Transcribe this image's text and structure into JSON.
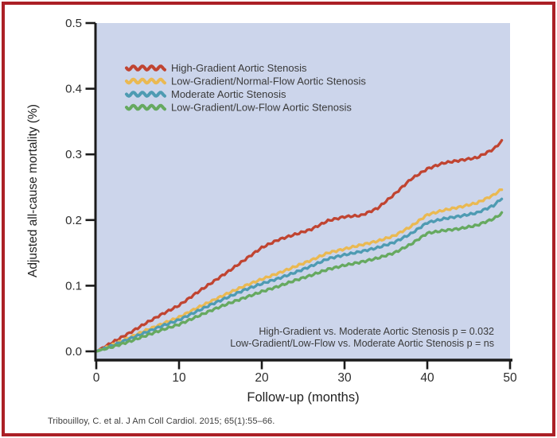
{
  "figure": {
    "citation": "Tribouilloy, C. et al. J Am Coll Cardiol. 2015; 65(1):55–66.",
    "border_color": "#ab2026",
    "background_color": "#ffffff"
  },
  "chart_data": {
    "type": "line",
    "title": "",
    "xlabel": "Follow-up (months)",
    "ylabel": "Adjusted all-cause mortality (%)",
    "xlim": [
      0,
      50
    ],
    "ylim": [
      0.0,
      0.5
    ],
    "x_ticks": [
      "0",
      "10",
      "20",
      "30",
      "40",
      "50"
    ],
    "x_tick_values": [
      0,
      10,
      20,
      30,
      40,
      50
    ],
    "y_ticks": [
      "0.0",
      "0.1",
      "0.2",
      "0.3",
      "0.4",
      "0.5"
    ],
    "y_tick_values": [
      0.0,
      0.1,
      0.2,
      0.3,
      0.4,
      0.5
    ],
    "grid": false,
    "plot_background": "#ccd5eb",
    "axis_color": "#1b1b1b",
    "legend_position": "upper-left-inside",
    "line_style": "wavy",
    "x": [
      0,
      2,
      4,
      6,
      8,
      10,
      12,
      14,
      16,
      18,
      20,
      22,
      24,
      26,
      28,
      30,
      32,
      34,
      36,
      38,
      40,
      42,
      44,
      46,
      48,
      49
    ],
    "series": [
      {
        "name": "High-Gradient Aortic Stenosis",
        "color": "#c04431",
        "values": [
          0.0,
          0.014,
          0.028,
          0.043,
          0.057,
          0.07,
          0.088,
          0.105,
          0.122,
          0.14,
          0.158,
          0.17,
          0.178,
          0.186,
          0.199,
          0.205,
          0.207,
          0.218,
          0.239,
          0.262,
          0.278,
          0.287,
          0.291,
          0.295,
          0.308,
          0.32
        ]
      },
      {
        "name": "Low-Gradient/Normal-Flow Aortic Stenosis",
        "color": "#eab952",
        "values": [
          0.0,
          0.01,
          0.021,
          0.032,
          0.042,
          0.052,
          0.065,
          0.077,
          0.089,
          0.1,
          0.11,
          0.119,
          0.129,
          0.139,
          0.15,
          0.156,
          0.162,
          0.168,
          0.176,
          0.19,
          0.208,
          0.215,
          0.22,
          0.226,
          0.238,
          0.247
        ]
      },
      {
        "name": "Moderate Aortic Stenosis",
        "color": "#4e9bb2",
        "values": [
          0.0,
          0.009,
          0.019,
          0.029,
          0.039,
          0.048,
          0.06,
          0.072,
          0.083,
          0.094,
          0.103,
          0.111,
          0.12,
          0.13,
          0.141,
          0.147,
          0.152,
          0.158,
          0.166,
          0.179,
          0.196,
          0.202,
          0.206,
          0.211,
          0.222,
          0.233
        ]
      },
      {
        "name": "Low-Gradient/Low-Flow Aortic Stenosis",
        "color": "#66a960",
        "values": [
          0.0,
          0.007,
          0.015,
          0.024,
          0.033,
          0.041,
          0.052,
          0.063,
          0.073,
          0.082,
          0.091,
          0.099,
          0.108,
          0.116,
          0.125,
          0.131,
          0.136,
          0.142,
          0.15,
          0.163,
          0.18,
          0.184,
          0.187,
          0.192,
          0.202,
          0.21
        ]
      }
    ],
    "annotations": [
      "High-Gradient vs. Moderate Aortic Stenosis p = 0.032",
      "Low-Gradient/Low-Flow vs. Moderate Aortic Stenosis p = ns"
    ]
  }
}
